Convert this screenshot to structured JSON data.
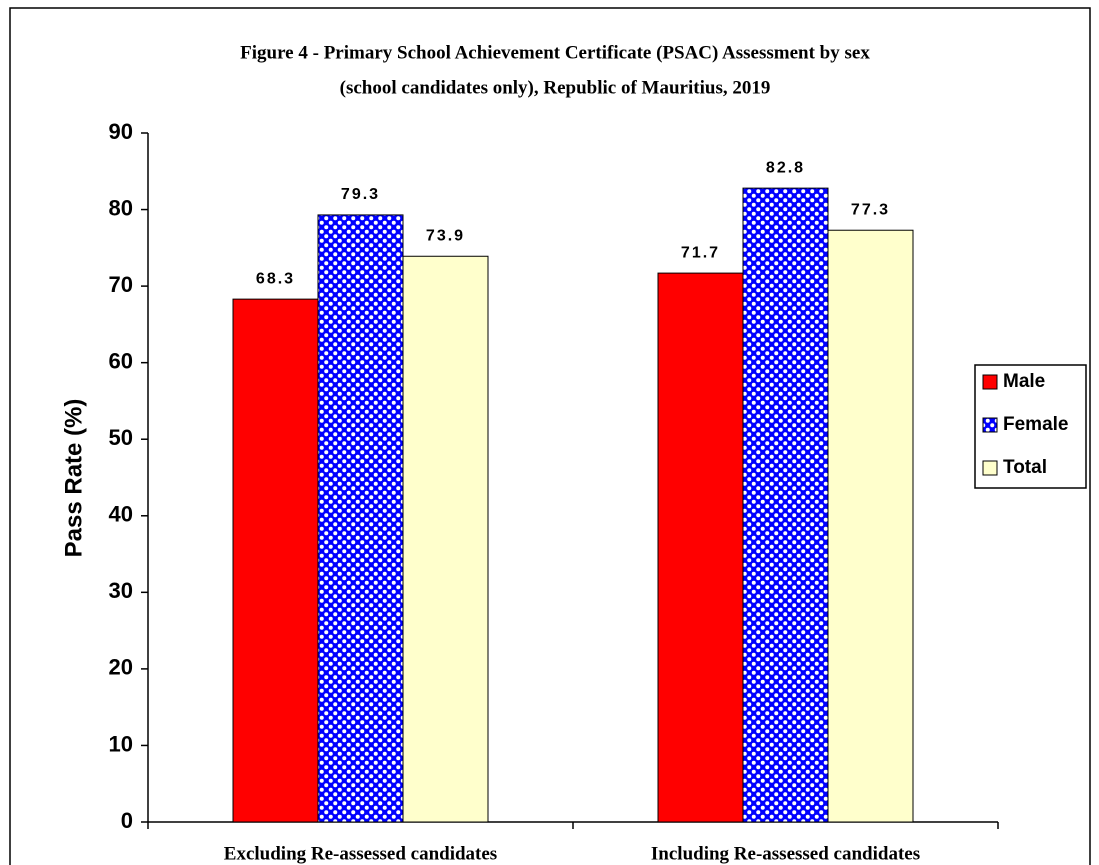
{
  "chart_data": {
    "type": "bar",
    "title": [
      "Figure 4 - Primary School Achievement Certificate (PSAC) Assessment by sex",
      "(school candidates only), Republic of Mauritius, 2019"
    ],
    "y_label": "Pass Rate (%)",
    "categories": [
      "Excluding Re-assessed candidates",
      "Including Re-assessed candidates"
    ],
    "series": [
      {
        "name": "Male",
        "color": "#ff0000",
        "values": [
          68.3,
          71.7
        ]
      },
      {
        "name": "Female",
        "color": "#0000ff",
        "pattern": "dots",
        "values": [
          79.3,
          82.8
        ]
      },
      {
        "name": "Total",
        "color": "#ffffcc",
        "values": [
          73.9,
          77.3
        ]
      }
    ],
    "ylim": [
      0,
      90
    ],
    "yticks": [
      0,
      10,
      20,
      30,
      40,
      50,
      60,
      70,
      80,
      90
    ],
    "grid": false,
    "legend": "right"
  }
}
